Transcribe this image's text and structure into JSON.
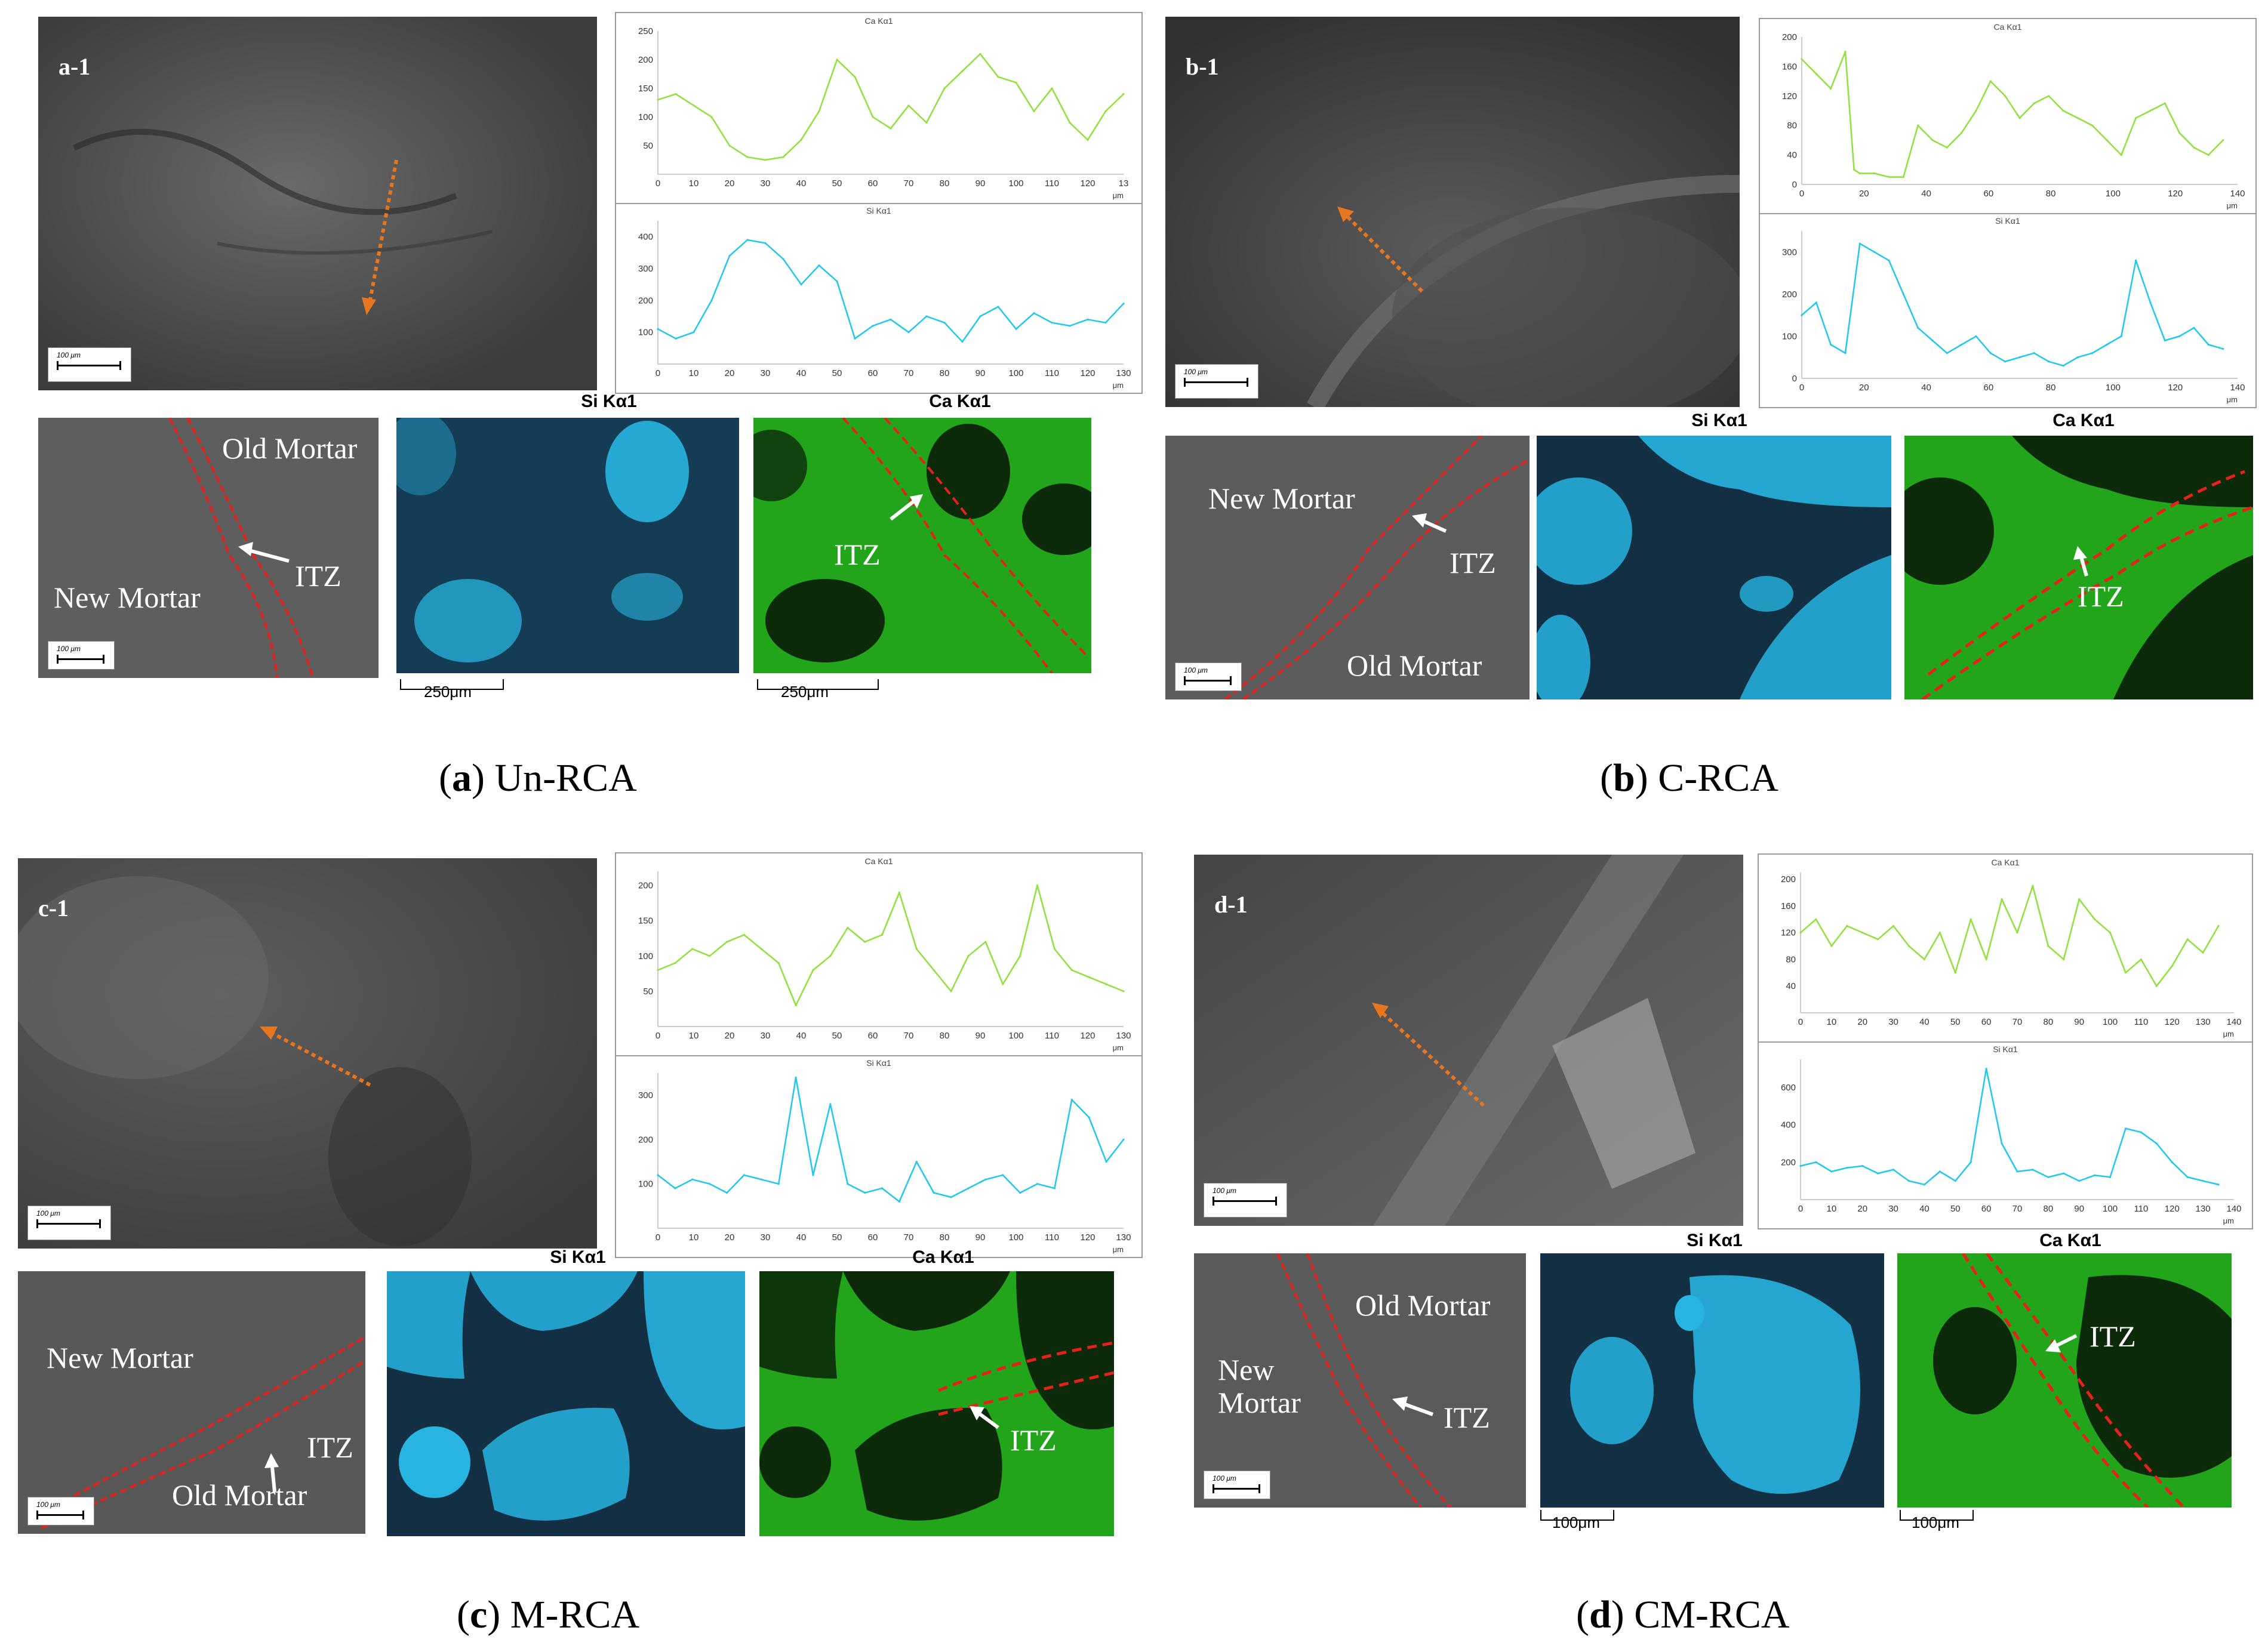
{
  "colors": {
    "ca_line": "#8fe23a",
    "si_line": "#1ec8ee",
    "itz_boundary": "#e8201a",
    "arrow": "#e8761f",
    "ca_map": "#21a81a",
    "si_map": "#27b4e0"
  },
  "panels": [
    {
      "id": "a",
      "tag": "a-1",
      "sem_scale": "100 μm",
      "bse_scale": "100 μm",
      "labels": {
        "old": "Old Mortar",
        "new": "New Mortar",
        "itz": "ITZ"
      },
      "si_map_title": "Si Kα1",
      "ca_map_title": "Ca Kα1",
      "map_scale": "250μm",
      "caption_letter": "a",
      "caption_text": "Un-RCA",
      "chart_data": [
        {
          "type": "line",
          "title": "Ca Kα1",
          "xlabel": "μm",
          "xlim": [
            0,
            130
          ],
          "ylim": [
            0,
            250
          ],
          "x_ticks": [
            "0",
            "10",
            "20",
            "30",
            "40",
            "50",
            "60",
            "70",
            "80",
            "90",
            "100",
            "110",
            "120",
            "13"
          ],
          "y_ticks": [
            "50",
            "100",
            "150",
            "200",
            "250"
          ],
          "x": [
            0,
            5,
            10,
            15,
            20,
            25,
            30,
            35,
            40,
            45,
            50,
            55,
            60,
            65,
            70,
            75,
            80,
            85,
            90,
            95,
            100,
            105,
            110,
            115,
            120,
            125,
            130
          ],
          "values": [
            130,
            140,
            120,
            100,
            50,
            30,
            25,
            30,
            60,
            110,
            200,
            170,
            100,
            80,
            120,
            90,
            150,
            180,
            210,
            170,
            160,
            110,
            150,
            90,
            60,
            110,
            140
          ]
        },
        {
          "type": "line",
          "title": "Si Kα1",
          "xlabel": "μm",
          "xlim": [
            0,
            130
          ],
          "ylim": [
            0,
            450
          ],
          "x_ticks": [
            "0",
            "10",
            "20",
            "30",
            "40",
            "50",
            "60",
            "70",
            "80",
            "90",
            "100",
            "110",
            "120",
            "130"
          ],
          "y_ticks": [
            "100",
            "200",
            "300",
            "400"
          ],
          "x": [
            0,
            5,
            10,
            15,
            20,
            25,
            30,
            35,
            40,
            45,
            50,
            55,
            60,
            65,
            70,
            75,
            80,
            85,
            90,
            95,
            100,
            105,
            110,
            115,
            120,
            125,
            130
          ],
          "values": [
            110,
            80,
            100,
            200,
            340,
            390,
            380,
            330,
            250,
            310,
            260,
            80,
            120,
            140,
            100,
            150,
            130,
            70,
            150,
            180,
            110,
            160,
            130,
            120,
            140,
            130,
            190
          ]
        }
      ]
    },
    {
      "id": "b",
      "tag": "b-1",
      "sem_scale": "100 μm",
      "bse_scale": "100 μm",
      "labels": {
        "old": "Old Mortar",
        "new": "New Mortar",
        "itz": "ITZ"
      },
      "si_map_title": "Si Kα1",
      "ca_map_title": "Ca Kα1",
      "map_scale": "",
      "caption_letter": "b",
      "caption_text": "C-RCA",
      "chart_data": [
        {
          "type": "line",
          "title": "Ca Kα1",
          "xlabel": "μm",
          "xlim": [
            0,
            150
          ],
          "ylim": [
            0,
            200
          ],
          "x_ticks": [
            "0",
            "20",
            "40",
            "60",
            "80",
            "100",
            "120",
            "140"
          ],
          "y_ticks": [
            "0",
            "40",
            "80",
            "120",
            "160",
            "200"
          ],
          "x": [
            0,
            5,
            10,
            15,
            18,
            20,
            25,
            30,
            35,
            40,
            45,
            50,
            55,
            60,
            65,
            70,
            75,
            80,
            85,
            90,
            95,
            100,
            105,
            110,
            115,
            120,
            125,
            130,
            135,
            140,
            145
          ],
          "values": [
            170,
            150,
            130,
            180,
            20,
            15,
            15,
            10,
            10,
            80,
            60,
            50,
            70,
            100,
            140,
            120,
            90,
            110,
            120,
            100,
            90,
            80,
            60,
            40,
            90,
            100,
            110,
            70,
            50,
            40,
            60
          ]
        },
        {
          "type": "line",
          "title": "Si Kα1",
          "xlabel": "μm",
          "xlim": [
            0,
            150
          ],
          "ylim": [
            0,
            350
          ],
          "x_ticks": [
            "0",
            "20",
            "40",
            "60",
            "80",
            "100",
            "120",
            "140"
          ],
          "y_ticks": [
            "0",
            "100",
            "200",
            "300"
          ],
          "x": [
            0,
            5,
            10,
            15,
            20,
            25,
            30,
            35,
            40,
            45,
            50,
            55,
            60,
            65,
            70,
            75,
            80,
            85,
            90,
            95,
            100,
            105,
            110,
            115,
            120,
            125,
            130,
            135,
            140,
            145
          ],
          "values": [
            150,
            180,
            80,
            60,
            320,
            300,
            280,
            200,
            120,
            90,
            60,
            80,
            100,
            60,
            40,
            50,
            60,
            40,
            30,
            50,
            60,
            80,
            100,
            280,
            180,
            90,
            100,
            120,
            80,
            70
          ]
        }
      ]
    },
    {
      "id": "c",
      "tag": "c-1",
      "sem_scale": "100 μm",
      "bse_scale": "100 μm",
      "labels": {
        "old": "Old Mortar",
        "new": "New Mortar",
        "itz": "ITZ"
      },
      "si_map_title": "Si Kα1",
      "ca_map_title": "Ca Kα1",
      "map_scale": "",
      "caption_letter": "c",
      "caption_text": "M-RCA",
      "chart_data": [
        {
          "type": "line",
          "title": "Ca Kα1",
          "xlabel": "μm",
          "xlim": [
            0,
            135
          ],
          "ylim": [
            0,
            220
          ],
          "x_ticks": [
            "0",
            "10",
            "20",
            "30",
            "40",
            "50",
            "60",
            "70",
            "80",
            "90",
            "100",
            "110",
            "120",
            "130"
          ],
          "y_ticks": [
            "50",
            "100",
            "150",
            "200"
          ],
          "x": [
            0,
            5,
            10,
            15,
            20,
            25,
            30,
            35,
            40,
            45,
            50,
            55,
            60,
            65,
            70,
            75,
            80,
            85,
            90,
            95,
            100,
            105,
            110,
            115,
            120,
            125,
            130,
            135
          ],
          "values": [
            80,
            90,
            110,
            100,
            120,
            130,
            110,
            90,
            30,
            80,
            100,
            140,
            120,
            130,
            190,
            110,
            80,
            50,
            100,
            120,
            60,
            100,
            200,
            110,
            80,
            70,
            60,
            50
          ]
        },
        {
          "type": "line",
          "title": "Si Kα1",
          "xlabel": "μm",
          "xlim": [
            0,
            135
          ],
          "ylim": [
            0,
            350
          ],
          "x_ticks": [
            "0",
            "10",
            "20",
            "30",
            "40",
            "50",
            "60",
            "70",
            "80",
            "90",
            "100",
            "110",
            "120",
            "130"
          ],
          "y_ticks": [
            "100",
            "200",
            "300"
          ],
          "x": [
            0,
            5,
            10,
            15,
            20,
            25,
            30,
            35,
            40,
            45,
            50,
            55,
            60,
            65,
            70,
            75,
            80,
            85,
            90,
            95,
            100,
            105,
            110,
            115,
            120,
            125,
            130,
            135
          ],
          "values": [
            120,
            90,
            110,
            100,
            80,
            120,
            110,
            100,
            340,
            120,
            280,
            100,
            80,
            90,
            60,
            150,
            80,
            70,
            90,
            110,
            120,
            80,
            100,
            90,
            290,
            250,
            150,
            200
          ]
        }
      ]
    },
    {
      "id": "d",
      "tag": "d-1",
      "sem_scale": "100 μm",
      "bse_scale": "100 μm",
      "labels": {
        "old": "Old Mortar",
        "new": "New\nMortar",
        "itz": "ITZ"
      },
      "si_map_title": "Si Kα1",
      "ca_map_title": "Ca Kα1",
      "map_scale": "100μm",
      "caption_letter": "d",
      "caption_text": "CM-RCA",
      "chart_data": [
        {
          "type": "line",
          "title": "Ca Kα1",
          "xlabel": "μm",
          "xlim": [
            0,
            140
          ],
          "ylim": [
            0,
            210
          ],
          "x_ticks": [
            "0",
            "10",
            "20",
            "30",
            "40",
            "50",
            "60",
            "70",
            "80",
            "90",
            "100",
            "110",
            "120",
            "130",
            "140"
          ],
          "y_ticks": [
            "40",
            "80",
            "120",
            "160",
            "200"
          ],
          "x": [
            0,
            5,
            10,
            15,
            20,
            25,
            30,
            35,
            40,
            45,
            50,
            55,
            60,
            65,
            70,
            75,
            80,
            85,
            90,
            95,
            100,
            105,
            110,
            115,
            120,
            125,
            130,
            135
          ],
          "values": [
            120,
            140,
            100,
            130,
            120,
            110,
            130,
            100,
            80,
            120,
            60,
            140,
            80,
            170,
            120,
            190,
            100,
            80,
            170,
            140,
            120,
            60,
            80,
            40,
            70,
            110,
            90,
            130
          ]
        },
        {
          "type": "line",
          "title": "Si Kα1",
          "xlabel": "μm",
          "xlim": [
            0,
            140
          ],
          "ylim": [
            0,
            750
          ],
          "x_ticks": [
            "0",
            "10",
            "20",
            "30",
            "40",
            "50",
            "60",
            "70",
            "80",
            "90",
            "100",
            "110",
            "120",
            "130",
            "140"
          ],
          "y_ticks": [
            "200",
            "400",
            "600"
          ],
          "x": [
            0,
            5,
            10,
            15,
            20,
            25,
            30,
            35,
            40,
            45,
            50,
            55,
            60,
            65,
            70,
            75,
            80,
            85,
            90,
            95,
            100,
            105,
            110,
            115,
            120,
            125,
            130,
            135
          ],
          "values": [
            180,
            200,
            150,
            170,
            180,
            140,
            160,
            100,
            80,
            150,
            100,
            200,
            700,
            300,
            150,
            160,
            120,
            140,
            100,
            130,
            120,
            380,
            360,
            300,
            200,
            120,
            100,
            80
          ]
        }
      ]
    }
  ]
}
